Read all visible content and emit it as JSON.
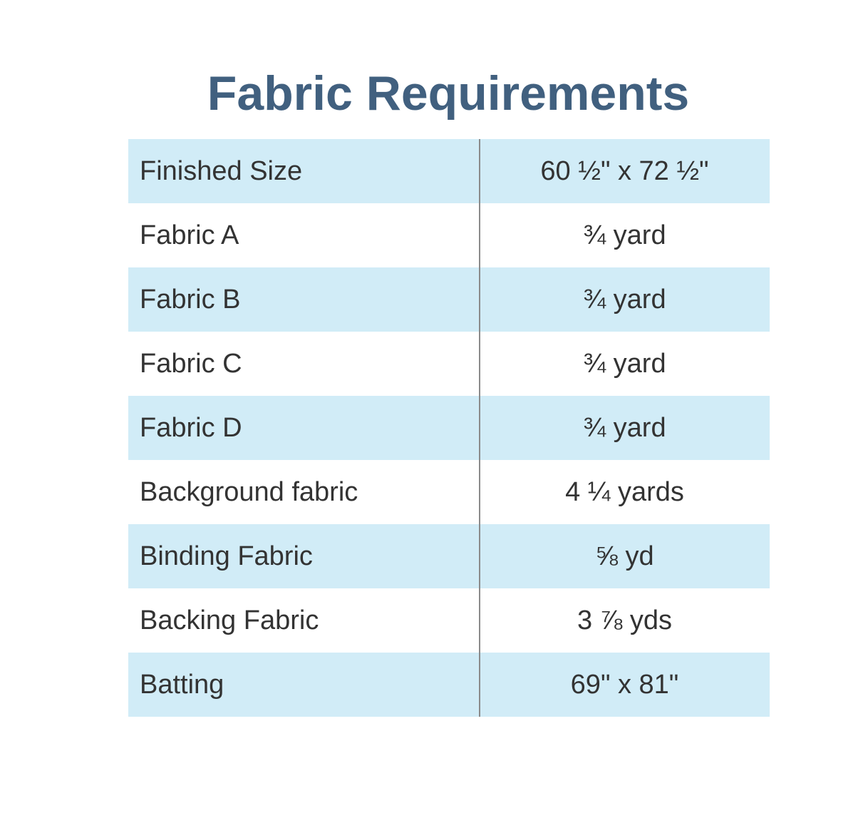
{
  "title": "Fabric Requirements",
  "colors": {
    "title": "#41607f",
    "row_shade": "#d1ecf7",
    "text": "#333333"
  },
  "rows": [
    {
      "label": "Finished Size",
      "value": "60 ½\" x 72 ½\""
    },
    {
      "label": "Fabric A",
      "value": "¾ yard"
    },
    {
      "label": "Fabric B",
      "value": "¾ yard"
    },
    {
      "label": "Fabric C",
      "value": "¾ yard"
    },
    {
      "label": "Fabric D",
      "value": "¾ yard"
    },
    {
      "label": "Background fabric",
      "value": "4 ¼ yards"
    },
    {
      "label": "Binding Fabric",
      "value": "⅝ yd"
    },
    {
      "label": "Backing Fabric",
      "value": "3 ⅞ yds"
    },
    {
      "label": "Batting",
      "value": "69\" x 81\""
    }
  ]
}
